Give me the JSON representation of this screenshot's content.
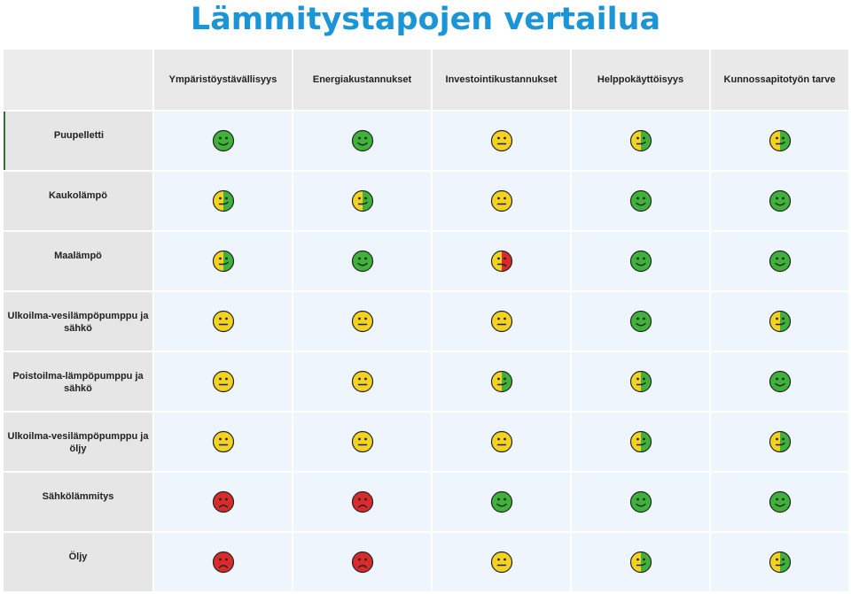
{
  "title": "Lämmitystapojen vertailua",
  "columns": [
    "Ympäristöystävällisyys",
    "Energiakustannukset",
    "Investointikustannukset",
    "Helppokäyttöisyys",
    "Kunnossapitotyön tarve"
  ],
  "rows": [
    {
      "label": "Puupelletti",
      "ratings": [
        "good",
        "good",
        "neutral",
        "neutral-good",
        "neutral-good"
      ]
    },
    {
      "label": "Kaukolämpö",
      "ratings": [
        "neutral-good",
        "neutral-good",
        "neutral",
        "good",
        "good"
      ]
    },
    {
      "label": "Maalämpö",
      "ratings": [
        "neutral-good",
        "good",
        "neutral-bad",
        "good",
        "good"
      ]
    },
    {
      "label": "Ulkoilma-vesilämpöpumppu ja sähkö",
      "ratings": [
        "neutral",
        "neutral",
        "neutral",
        "good",
        "neutral-good"
      ]
    },
    {
      "label": "Poistoilma-lämpöpumppu ja sähkö",
      "ratings": [
        "neutral",
        "neutral",
        "neutral-good",
        "neutral-good",
        "good"
      ]
    },
    {
      "label": "Ulkoilma-vesilämpöpumppu ja öljy",
      "ratings": [
        "neutral",
        "neutral",
        "neutral",
        "neutral-good",
        "neutral-good"
      ]
    },
    {
      "label": "Sähkölämmitys",
      "ratings": [
        "bad",
        "bad",
        "good",
        "good",
        "good"
      ]
    },
    {
      "label": "Öljy",
      "ratings": [
        "bad",
        "bad",
        "neutral",
        "neutral-good",
        "neutral-good"
      ]
    }
  ],
  "colors": {
    "good": "#3fb23a",
    "neutral": "#f3d31f",
    "bad": "#d92b2b",
    "title": "#1b95d6"
  },
  "icons": {
    "good": "smiley-happy-icon",
    "neutral": "smiley-neutral-icon",
    "neutral-good": "smiley-half-neutral-happy-icon",
    "neutral-bad": "smiley-half-neutral-sad-icon",
    "bad": "smiley-sad-icon"
  }
}
